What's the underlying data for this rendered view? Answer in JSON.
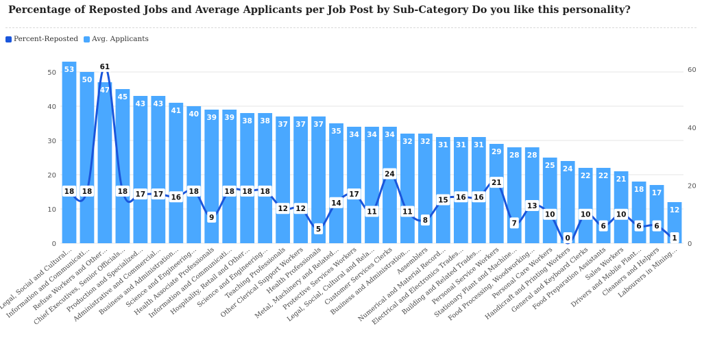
{
  "title": "Percentage of Reposted Jobs and Average Applicants per Job Post by Sub-Category Do you like this personality?",
  "colors": {
    "line": "#1a56db",
    "bar": "#4aa8ff",
    "grid": "#e6e6e6"
  },
  "chart_data": {
    "type": "bar",
    "categories": [
      "Legal, Social and Cultural…",
      "Information and Communicati…",
      "Refuse Workers and Other…",
      "Chief Executives, Senior Officials…",
      "Production and Specialized…",
      "Administrative and Commercial…",
      "Business and Administration…",
      "Science and Engineering…",
      "Health Associate Professionals",
      "Information and Communicati…",
      "Hospitality, Retail and Other…",
      "Science and Engineering…",
      "Teaching Professionals",
      "Other Clerical Support Workers",
      "Health Professionals",
      "Metal, Machinery and Related…",
      "Protective Services Workers",
      "Legal, Social, Cultural and Rela…",
      "Customer Services Clerks",
      "Business and Administration…",
      "Assemblers",
      "Numerical and Material Record…",
      "Electrical and Electronics Trades…",
      "Building and Related Trades…",
      "Personal Service Workers",
      "Stationary Plant and Machine…",
      "Food Processing, Woodworking…",
      "Personal Care Workers",
      "Handicraft and Printing Workers",
      "General and Keyboard Clerks",
      "Food Preparation Assistants",
      "Sales Workers",
      "Drivers and Mobile Plant…",
      "Cleaners and Helpers",
      "Labourers in Mining…"
    ],
    "series": [
      {
        "name": "Percent-Reposted",
        "type": "line",
        "axis": "right",
        "values": [
          18,
          18,
          61,
          18,
          17,
          17,
          16,
          18,
          9,
          18,
          18,
          18,
          12,
          12,
          5,
          14,
          17,
          11,
          24,
          11,
          8,
          15,
          16,
          16,
          21,
          7,
          13,
          10,
          0,
          10,
          6,
          10,
          6,
          6,
          1
        ]
      },
      {
        "name": "Avg. Applicants",
        "type": "bar",
        "axis": "left",
        "values": [
          53,
          50,
          47,
          45,
          43,
          43,
          41,
          40,
          39,
          39,
          38,
          38,
          37,
          37,
          37,
          35,
          34,
          34,
          34,
          32,
          32,
          31,
          31,
          31,
          29,
          28,
          28,
          25,
          24,
          22,
          22,
          21,
          18,
          17,
          12
        ]
      }
    ],
    "y_left": {
      "ticks": [
        "0",
        "10",
        "20",
        "30",
        "40",
        "50"
      ],
      "range": [
        0,
        55
      ]
    },
    "y_right": {
      "ticks": [
        "0",
        "20",
        "40",
        "60"
      ],
      "range": [
        0,
        65
      ]
    },
    "grid": true,
    "legend_position": "top-left"
  }
}
